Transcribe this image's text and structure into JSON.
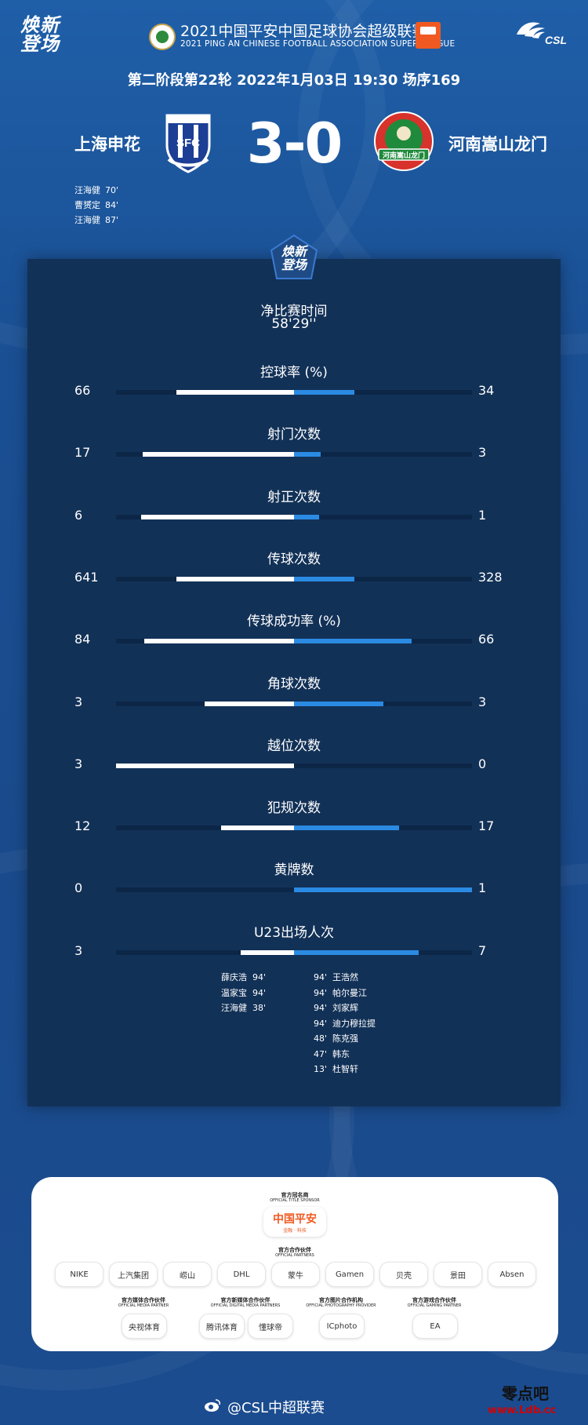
{
  "header": {
    "brand_mark": "焕新\n登场",
    "league_title_zh": "2021中国平安中国足球协会超级联赛",
    "league_title_en": "2021 PING AN CHINESE FOOTBALL ASSOCIATION SUPER LEAGUE",
    "csl_logo_text": "CSL"
  },
  "match": {
    "info": "第二阶段第22轮  2022年1月03日 19:30 场序169",
    "home_team": "上海申花",
    "away_team": "河南嵩山龙门",
    "score": "3-0",
    "home_crest_text": "SFC",
    "away_crest_text": "河南嵩山龙门",
    "scorers": [
      {
        "name": "汪海健",
        "minute": "70'"
      },
      {
        "name": "曹赟定",
        "minute": "84'"
      },
      {
        "name": "汪海健",
        "minute": "87'"
      }
    ]
  },
  "panel": {
    "badge_text": "焕新\n登场",
    "net_time_label": "净比赛时间",
    "net_time_value": "58'29''",
    "stats": [
      {
        "label": "控球率 (%)",
        "home": "66",
        "away": "34",
        "home_frac": 0.66,
        "away_frac": 0.34
      },
      {
        "label": "射门次数",
        "home": "17",
        "away": "3",
        "home_frac": 0.85,
        "away_frac": 0.15
      },
      {
        "label": "射正次数",
        "home": "6",
        "away": "1",
        "home_frac": 0.86,
        "away_frac": 0.14
      },
      {
        "label": "传球次数",
        "home": "641",
        "away": "328",
        "home_frac": 0.66,
        "away_frac": 0.34
      },
      {
        "label": "传球成功率 (%)",
        "home": "84",
        "away": "66",
        "home_frac": 0.84,
        "away_frac": 0.66
      },
      {
        "label": "角球次数",
        "home": "3",
        "away": "3",
        "home_frac": 0.5,
        "away_frac": 0.5
      },
      {
        "label": "越位次数",
        "home": "3",
        "away": "0",
        "home_frac": 1.0,
        "away_frac": 0.0
      },
      {
        "label": "犯规次数",
        "home": "12",
        "away": "17",
        "home_frac": 0.41,
        "away_frac": 0.59
      },
      {
        "label": "黄牌数",
        "home": "0",
        "away": "1",
        "home_frac": 0.0,
        "away_frac": 1.0
      },
      {
        "label": "U23出场人次",
        "home": "3",
        "away": "7",
        "home_frac": 0.3,
        "away_frac": 0.7
      }
    ],
    "u23_home": [
      {
        "name": "薛庆浩",
        "minute": "94'"
      },
      {
        "name": "温家宝",
        "minute": "94'"
      },
      {
        "name": "汪海健",
        "minute": "38'"
      }
    ],
    "u23_away": [
      {
        "minute": "94'",
        "name": "王浩然"
      },
      {
        "minute": "94'",
        "name": "帕尔曼江"
      },
      {
        "minute": "94'",
        "name": "刘家辉"
      },
      {
        "minute": "94'",
        "name": "迪力穆拉提"
      },
      {
        "minute": "48'",
        "name": "陈克强"
      },
      {
        "minute": "47'",
        "name": "韩东"
      },
      {
        "minute": "13'",
        "name": "杜智轩"
      }
    ]
  },
  "partners": {
    "title_sponsor_cap": "官方冠名商",
    "title_sponsor_cap_en": "OFFICIAL TITLE SPONSOR",
    "title_sponsor": "中国平安",
    "title_sponsor_sub": "金融 · 科技",
    "official_cap": "官方合作伙伴",
    "official_cap_en": "OFFICIAL PARTNERS",
    "official": [
      "NIKE",
      "上汽集团",
      "崂山",
      "DHL",
      "蒙牛",
      "Gamen",
      "贝壳",
      "景田",
      "Absen"
    ],
    "groups": [
      {
        "cap": "官方媒体合作伙伴",
        "cap_en": "OFFICIAL MEDIA PARTNER",
        "items": [
          "央视体育"
        ]
      },
      {
        "cap": "官方新媒体合作伙伴",
        "cap_en": "OFFICIAL DIGITAL MEDIA PARTNERS",
        "items": [
          "腾讯体育",
          "懂球帝"
        ]
      },
      {
        "cap": "官方图片合作机构",
        "cap_en": "OFFICIAL PHOTOGRAPHY PROVIDER",
        "items": [
          "ICphoto"
        ]
      },
      {
        "cap": "官方游戏合作伙伴",
        "cap_en": "OFFICIAL GAMING PARTNER",
        "items": [
          "EA"
        ]
      }
    ]
  },
  "footer": {
    "weibo": "@CSL中超联赛",
    "watermark": "零点吧",
    "watermark_url": "www.Ldb.cc"
  },
  "colors": {
    "background": "#1d5499",
    "panel": "#123157",
    "home_bar": "#ffffff",
    "away_bar": "#2b8be3",
    "track": "#0c2647"
  }
}
